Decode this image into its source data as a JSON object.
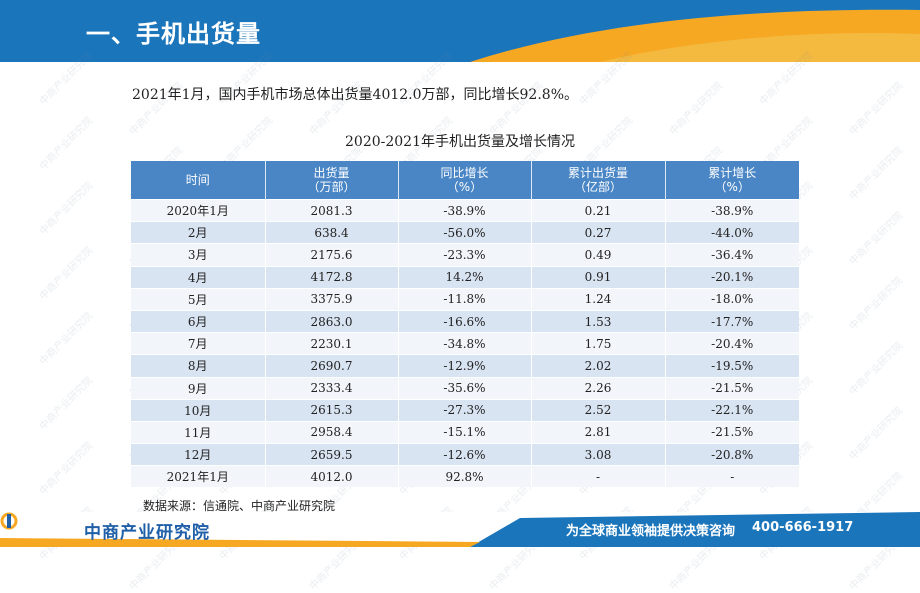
{
  "header": {
    "title": "一、手机出货量"
  },
  "summary": "2021年1月，国内手机市场总体出货量4012.0万部，同比增长92.8%。",
  "table": {
    "title": "2020-2021年手机出货量及增长情况",
    "columns": [
      {
        "line1": "时间",
        "line2": ""
      },
      {
        "line1": "出货量",
        "line2": "（万部）"
      },
      {
        "line1": "同比增长",
        "line2": "（%）"
      },
      {
        "line1": "累计出货量",
        "line2": "（亿部）"
      },
      {
        "line1": "累计增长",
        "line2": "（%）"
      }
    ],
    "rows": [
      [
        "2020年1月",
        "2081.3",
        "-38.9%",
        "0.21",
        "-38.9%"
      ],
      [
        "2月",
        "638.4",
        "-56.0%",
        "0.27",
        "-44.0%"
      ],
      [
        "3月",
        "2175.6",
        "-23.3%",
        "0.49",
        "-36.4%"
      ],
      [
        "4月",
        "4172.8",
        "14.2%",
        "0.91",
        "-20.1%"
      ],
      [
        "5月",
        "3375.9",
        "-11.8%",
        "1.24",
        "-18.0%"
      ],
      [
        "6月",
        "2863.0",
        "-16.6%",
        "1.53",
        "-17.7%"
      ],
      [
        "7月",
        "2230.1",
        "-34.8%",
        "1.75",
        "-20.4%"
      ],
      [
        "8月",
        "2690.7",
        "-12.9%",
        "2.02",
        "-19.5%"
      ],
      [
        "9月",
        "2333.4",
        "-35.6%",
        "2.26",
        "-21.5%"
      ],
      [
        "10月",
        "2615.3",
        "-27.3%",
        "2.52",
        "-22.1%"
      ],
      [
        "11月",
        "2958.4",
        "-15.1%",
        "2.81",
        "-21.5%"
      ],
      [
        "12月",
        "2659.5",
        "-12.6%",
        "3.08",
        "-20.8%"
      ],
      [
        "2021年1月",
        "4012.0",
        "92.8%",
        "-",
        "-"
      ]
    ]
  },
  "source": "数据来源：信通院、中商产业研究院",
  "footer": {
    "logo": "中商产业研究院",
    "slogan": "为全球商业领袖提供决策咨询",
    "phone": "400-666-1917"
  },
  "watermark": "中商产业研究院",
  "colors": {
    "header_blue": "#1b75bb",
    "accent_orange": "#f7a823",
    "table_header": "#4a86c5",
    "row_light": "#f2f5fa",
    "row_dark": "#d9e4f2"
  }
}
